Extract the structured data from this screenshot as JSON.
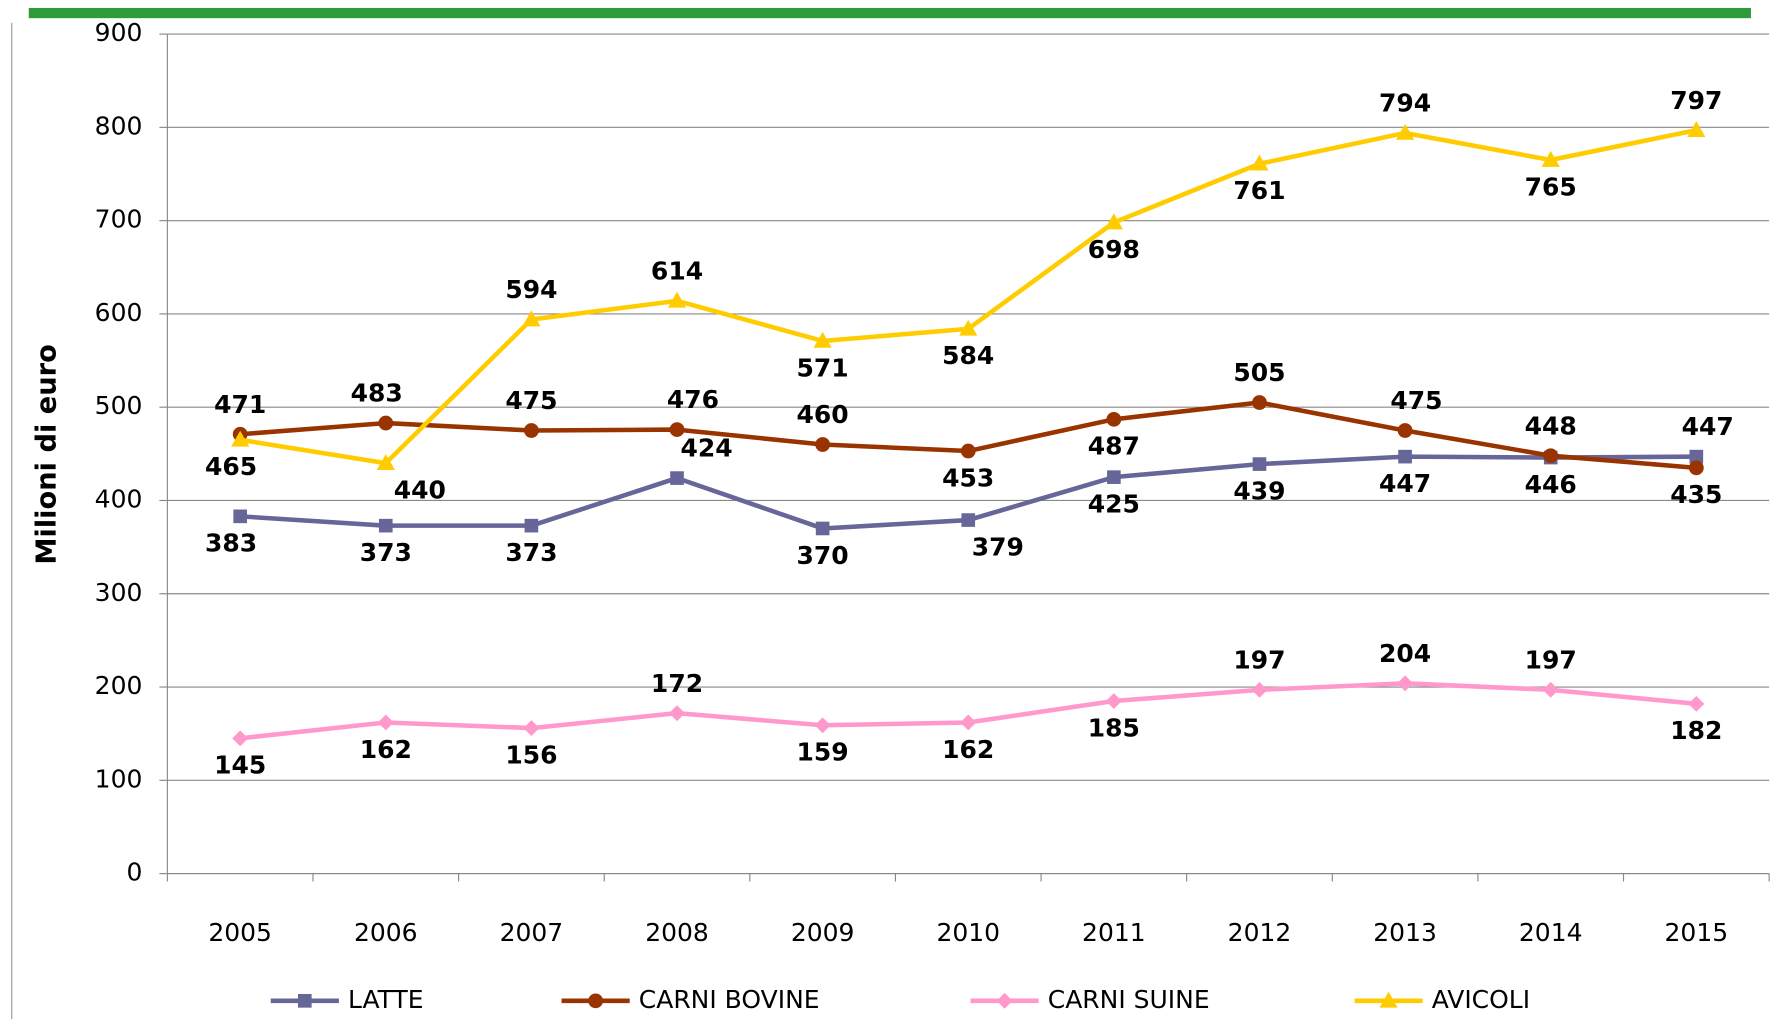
{
  "chart_data": {
    "type": "line",
    "ylabel": "Milioni di euro",
    "categories": [
      "2005",
      "2006",
      "2007",
      "2008",
      "2009",
      "2010",
      "2011",
      "2012",
      "2013",
      "2014",
      "2015"
    ],
    "series": [
      {
        "name": "LATTE",
        "color": "#666699",
        "marker": "square",
        "values": [
          383,
          373,
          373,
          424,
          370,
          379,
          425,
          439,
          447,
          446,
          447
        ]
      },
      {
        "name": "CARNI BOVINE",
        "color": "#993300",
        "marker": "circle",
        "values": [
          471,
          483,
          475,
          476,
          460,
          453,
          487,
          505,
          475,
          448,
          435
        ]
      },
      {
        "name": "CARNI SUINE",
        "color": "#ff99cc",
        "marker": "diamond",
        "values": [
          145,
          162,
          156,
          172,
          159,
          162,
          185,
          197,
          204,
          197,
          182
        ]
      },
      {
        "name": "AVICOLI",
        "color": "#ffcc00",
        "marker": "triangle",
        "values": [
          465,
          440,
          594,
          614,
          571,
          584,
          698,
          761,
          794,
          765,
          797
        ]
      }
    ],
    "ylim": [
      0,
      900
    ],
    "yticks": [
      0,
      100,
      200,
      300,
      400,
      500,
      600,
      700,
      800,
      900
    ],
    "grid": true,
    "legend": "bottom"
  }
}
